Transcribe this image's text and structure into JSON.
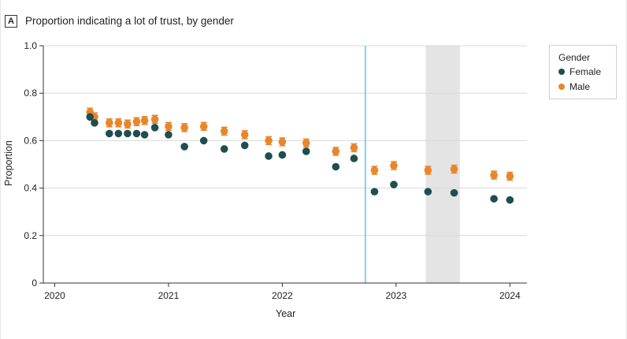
{
  "panel_letter": "A",
  "title": "Proportion indicating a lot of trust, by gender",
  "chart_data": {
    "type": "scatter",
    "title": "Proportion indicating a lot of trust, by gender",
    "xlabel": "Year",
    "ylabel": "Proportion",
    "xlim": [
      2019.9,
      2024.15
    ],
    "ylim": [
      0,
      1.0
    ],
    "x_ticks": [
      2020,
      2021,
      2022,
      2023,
      2024
    ],
    "x_tick_labels": [
      "2020",
      "2021",
      "2022",
      "2023",
      "2024"
    ],
    "y_ticks": [
      0,
      0.2,
      0.4,
      0.6,
      0.8,
      1.0
    ],
    "y_tick_labels": [
      "0",
      "0.2",
      "0.4",
      "0.6",
      "0.8",
      "1.0"
    ],
    "grid": "horizontal",
    "legend_title": "Gender",
    "legend_position": "top-right, outside plot",
    "vertical_line_x": 2022.73,
    "shaded_region_x": [
      2023.26,
      2023.56
    ],
    "series": [
      {
        "name": "Female",
        "color": "#1f4e4e",
        "x": [
          2020.31,
          2020.35,
          2020.48,
          2020.56,
          2020.64,
          2020.72,
          2020.79,
          2020.88,
          2021.0,
          2021.14,
          2021.31,
          2021.49,
          2021.67,
          2021.88,
          2022.0,
          2022.21,
          2022.47,
          2022.63,
          2022.81,
          2022.98,
          2023.28,
          2023.51,
          2023.86,
          2024.0
        ],
        "y": [
          0.7,
          0.675,
          0.63,
          0.63,
          0.63,
          0.63,
          0.625,
          0.655,
          0.625,
          0.575,
          0.6,
          0.565,
          0.58,
          0.535,
          0.54,
          0.555,
          0.49,
          0.525,
          0.385,
          0.415,
          0.385,
          0.38,
          0.355,
          0.35
        ]
      },
      {
        "name": "Male",
        "color": "#e8862a",
        "x": [
          2020.31,
          2020.35,
          2020.48,
          2020.56,
          2020.64,
          2020.72,
          2020.79,
          2020.88,
          2021.0,
          2021.14,
          2021.31,
          2021.49,
          2021.67,
          2021.88,
          2022.0,
          2022.21,
          2022.47,
          2022.63,
          2022.81,
          2022.98,
          2023.28,
          2023.51,
          2023.86,
          2024.0
        ],
        "y": [
          0.72,
          0.7,
          0.675,
          0.675,
          0.67,
          0.68,
          0.685,
          0.69,
          0.66,
          0.655,
          0.66,
          0.64,
          0.625,
          0.6,
          0.595,
          0.59,
          0.555,
          0.57,
          0.475,
          0.495,
          0.475,
          0.48,
          0.455,
          0.45
        ]
      }
    ]
  }
}
